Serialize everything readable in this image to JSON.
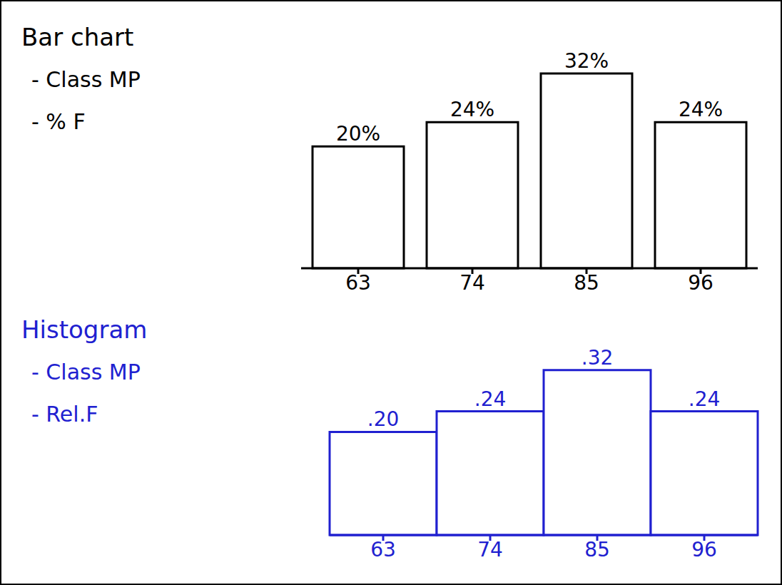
{
  "chart_data": [
    {
      "type": "bar",
      "title": "Bar chart",
      "annotations": [
        "- Class MP",
        "- % F"
      ],
      "categories": [
        "63",
        "74",
        "85",
        "96"
      ],
      "values": [
        20,
        24,
        32,
        24
      ],
      "value_labels": [
        "20%",
        "24%",
        "32%",
        "24%"
      ],
      "data_labels": true,
      "tick_labels": "x",
      "color": "#000000"
    },
    {
      "type": "histogram",
      "title": "Histogram",
      "annotations": [
        "- Class MP",
        "- Rel.F"
      ],
      "categories": [
        "63",
        "74",
        "85",
        "96"
      ],
      "values": [
        0.2,
        0.24,
        0.32,
        0.24
      ],
      "value_labels": [
        ".20",
        ".24",
        ".32",
        ".24"
      ],
      "data_labels": true,
      "tick_labels": "x",
      "color": "#2020d0"
    }
  ]
}
